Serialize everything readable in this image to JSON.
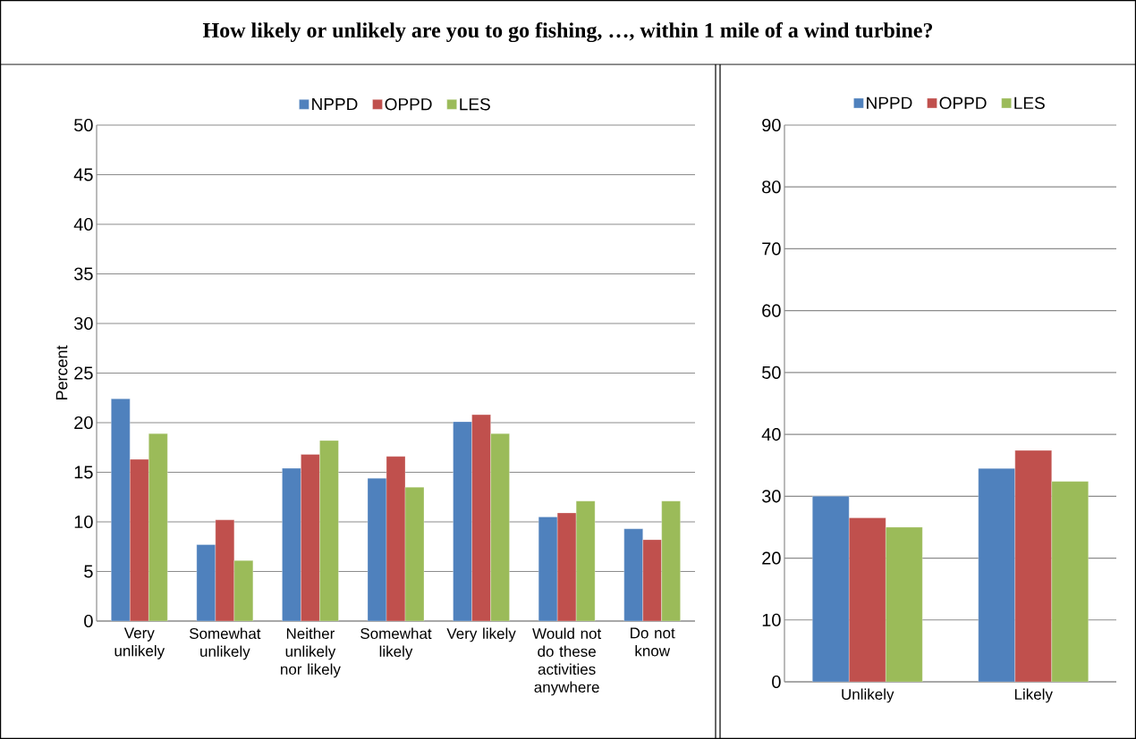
{
  "chart_data": [
    {
      "type": "bar",
      "title": "How likely or unlikely are you to go fishing, …, within 1 mile of a wind turbine?",
      "ylabel": "Percent",
      "categories": [
        "Very unlikely",
        "Somewhat unlikely",
        "Neither unlikely nor likely",
        "Somewhat likely",
        "Very likely",
        "Would not do these activities anywhere",
        "Do not know"
      ],
      "series": [
        {
          "name": "NPPD",
          "color": "#4f81bd",
          "values": [
            22.4,
            7.7,
            15.4,
            14.4,
            20.1,
            10.5,
            9.3
          ]
        },
        {
          "name": "OPPD",
          "color": "#c0504d",
          "values": [
            16.3,
            10.2,
            16.8,
            16.6,
            20.8,
            10.9,
            8.2
          ]
        },
        {
          "name": "LES",
          "color": "#9bbb59",
          "values": [
            18.9,
            6.1,
            18.2,
            13.5,
            18.9,
            12.1,
            12.1
          ]
        }
      ],
      "ylim": [
        0,
        50
      ],
      "yticks": [
        0,
        5,
        10,
        15,
        20,
        25,
        30,
        35,
        40,
        45,
        50
      ],
      "grid": "y",
      "legend": "top"
    },
    {
      "type": "bar",
      "categories": [
        "Unlikely",
        "Likely"
      ],
      "series": [
        {
          "name": "NPPD",
          "color": "#4f81bd",
          "values": [
            30,
            34.5
          ]
        },
        {
          "name": "OPPD",
          "color": "#c0504d",
          "values": [
            26.5,
            37.4
          ]
        },
        {
          "name": "LES",
          "color": "#9bbb59",
          "values": [
            25,
            32.4
          ]
        }
      ],
      "ylim": [
        0,
        90
      ],
      "yticks": [
        0,
        10,
        20,
        30,
        40,
        50,
        60,
        70,
        80,
        90
      ],
      "grid": "y",
      "legend": "top"
    }
  ]
}
